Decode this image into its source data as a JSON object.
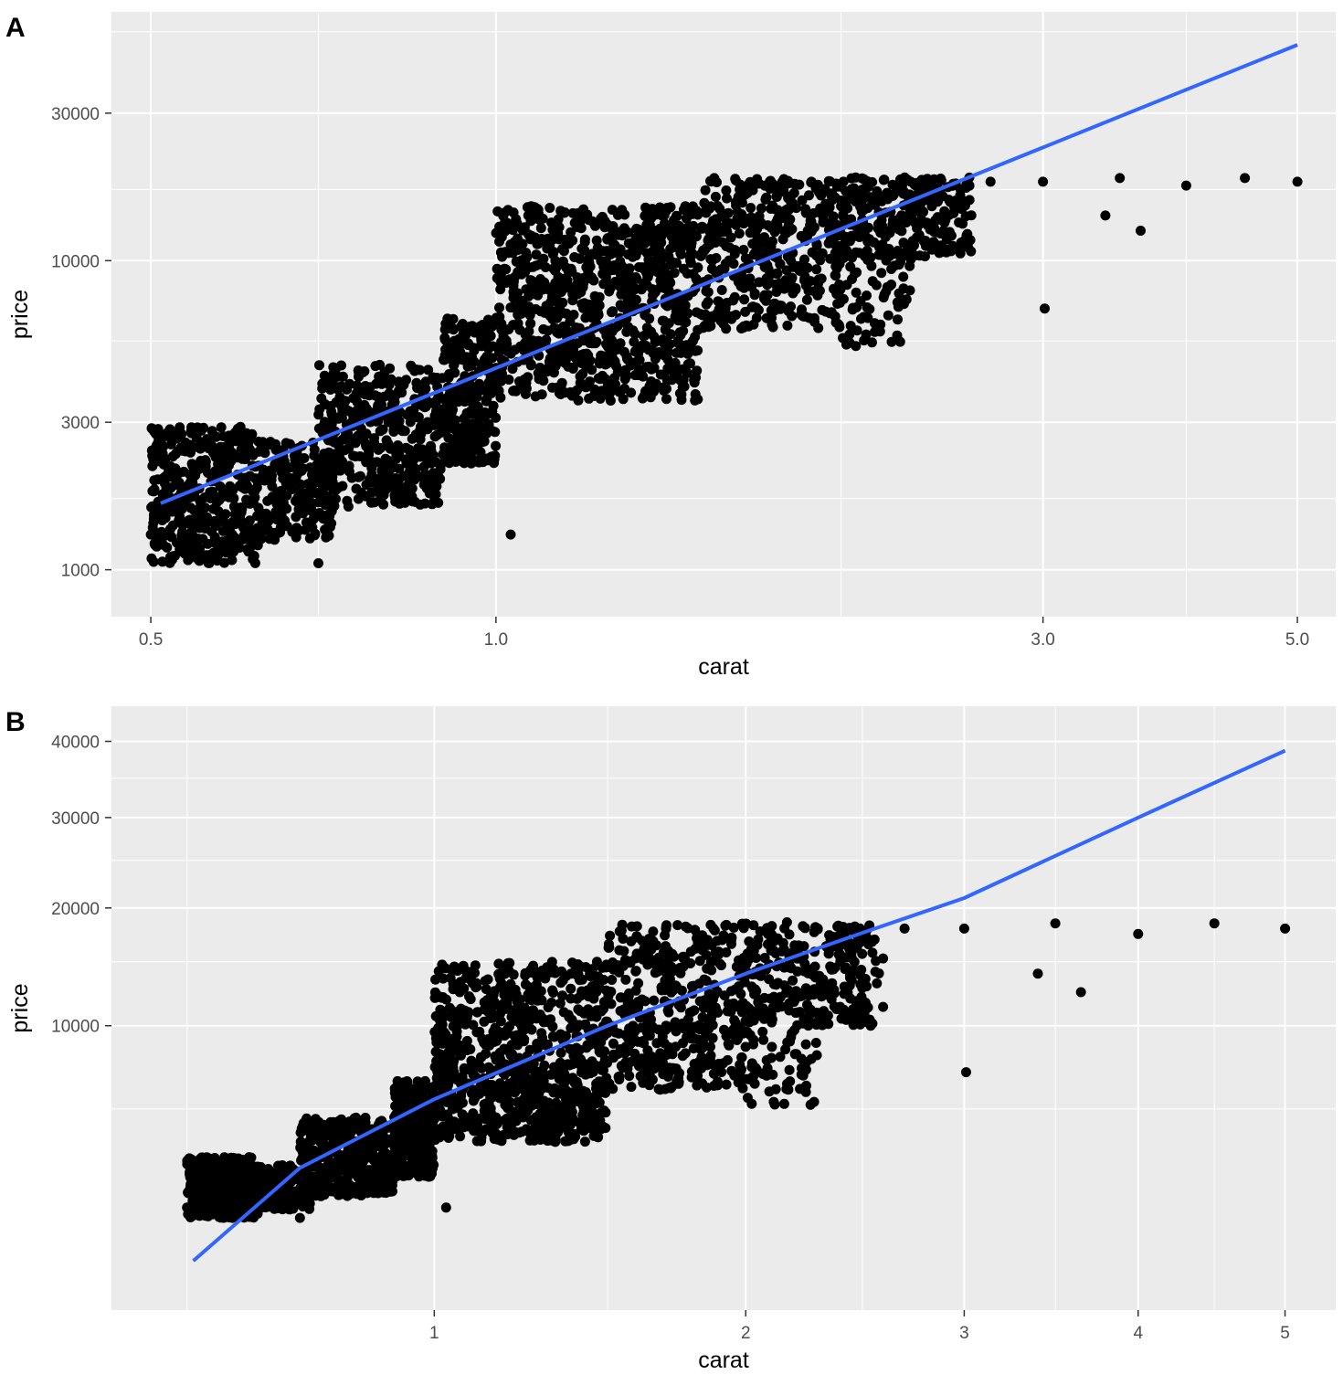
{
  "chart_data": [
    {
      "panel": "A",
      "type": "scatter",
      "title": "",
      "xlabel": "carat",
      "ylabel": "price",
      "x_scale": "log",
      "y_scale": "log",
      "xlim": [
        0.462,
        5.4
      ],
      "ylim": [
        705,
        63800
      ],
      "x_ticks": [
        0.5,
        1.0,
        3.0,
        5.0
      ],
      "x_tick_labels": [
        "0.5",
        "1.0",
        "3.0",
        "5.0"
      ],
      "x_minor_ticks": [
        0.7,
        2.0,
        4.0
      ],
      "y_ticks": [
        1000,
        3000,
        10000,
        30000
      ],
      "y_tick_labels": [
        "1000",
        "3000",
        "10000",
        "30000"
      ],
      "y_minor_ticks": [
        1700,
        5500,
        17000,
        55000
      ],
      "grid": true,
      "legend": "none",
      "fit_line": {
        "type": "linear",
        "color": "#3366ff",
        "x": [
          0.51,
          5.0
        ],
        "y": [
          1640,
          49900
        ]
      },
      "series": [
        {
          "values": [
            [
              0.52,
              1100
            ],
            [
              0.55,
              1250
            ],
            [
              0.6,
              1400
            ],
            [
              0.65,
              1500
            ],
            [
              0.5,
              1300
            ],
            [
              0.62,
              1200
            ],
            [
              0.7,
              1050
            ],
            [
              0.72,
              2000
            ],
            [
              0.78,
              2500
            ],
            [
              0.85,
              2300
            ],
            [
              0.8,
              3200
            ],
            [
              0.9,
              3000
            ],
            [
              0.92,
              5500
            ],
            [
              0.95,
              3600
            ],
            [
              1.0,
              4500
            ],
            [
              1.01,
              9000
            ],
            [
              1.05,
              7000
            ],
            [
              1.1,
              6000
            ],
            [
              1.2,
              5000
            ],
            [
              1.3,
              6500
            ],
            [
              1.4,
              8500
            ],
            [
              1.5,
              9500
            ],
            [
              1.6,
              11000
            ],
            [
              1.7,
              10000
            ],
            [
              1.8,
              13000
            ],
            [
              2.0,
              15000
            ],
            [
              2.05,
              17000
            ],
            [
              2.1,
              12000
            ],
            [
              2.2,
              16000
            ],
            [
              2.3,
              18000
            ],
            [
              2.4,
              15000
            ],
            [
              2.5,
              17500
            ],
            [
              2.7,
              18000
            ],
            [
              3.0,
              18000
            ],
            [
              3.01,
              7000
            ],
            [
              3.4,
              14000
            ],
            [
              3.5,
              18500
            ],
            [
              3.65,
              12500
            ],
            [
              4.0,
              17500
            ],
            [
              4.5,
              18500
            ],
            [
              5.0,
              18000
            ],
            [
              1.03,
              1300
            ]
          ]
        }
      ]
    },
    {
      "panel": "B",
      "type": "scatter",
      "title": "",
      "xlabel": "carat",
      "ylabel": "price",
      "x_scale": "cube-root",
      "y_scale": "sqrt",
      "xlim": [
        0.39,
        5.38
      ],
      "ylim": [
        0,
        45100
      ],
      "x_ticks": [
        1,
        2,
        3,
        4,
        5
      ],
      "x_tick_labels": [
        "1",
        "2",
        "3",
        "4",
        "5"
      ],
      "x_minor_ticks": [
        0.5,
        1.5,
        2.5,
        3.5,
        4.5
      ],
      "y_ticks": [
        10000,
        20000,
        30000,
        40000
      ],
      "y_tick_labels": [
        "10000",
        "20000",
        "30000",
        "40000"
      ],
      "y_minor_ticks": [
        5000,
        15000,
        25000,
        35000
      ],
      "grid": true,
      "legend": "none",
      "fit_line": {
        "type": "curve",
        "color": "#3366ff",
        "x": [
          0.51,
          0.7,
          1.0,
          1.5,
          2.0,
          2.5,
          3.0,
          4.0,
          5.0
        ],
        "y": [
          300,
          2500,
          5500,
          10000,
          14000,
          17600,
          21000,
          30000,
          38700
        ]
      },
      "series": [
        {
          "values": [
            [
              0.52,
              1100
            ],
            [
              0.55,
              1250
            ],
            [
              0.6,
              1400
            ],
            [
              0.65,
              1500
            ],
            [
              0.5,
              1300
            ],
            [
              0.62,
              1200
            ],
            [
              0.7,
              1050
            ],
            [
              0.72,
              2000
            ],
            [
              0.78,
              2500
            ],
            [
              0.85,
              2300
            ],
            [
              0.8,
              3200
            ],
            [
              0.9,
              3000
            ],
            [
              0.92,
              5500
            ],
            [
              0.95,
              3600
            ],
            [
              1.0,
              4500
            ],
            [
              1.01,
              9000
            ],
            [
              1.05,
              7000
            ],
            [
              1.1,
              6000
            ],
            [
              1.2,
              5000
            ],
            [
              1.3,
              6500
            ],
            [
              1.4,
              8500
            ],
            [
              1.5,
              9500
            ],
            [
              1.6,
              11000
            ],
            [
              1.7,
              10000
            ],
            [
              1.8,
              13000
            ],
            [
              2.0,
              15000
            ],
            [
              2.05,
              17000
            ],
            [
              2.1,
              12000
            ],
            [
              2.2,
              16000
            ],
            [
              2.3,
              18000
            ],
            [
              2.4,
              15000
            ],
            [
              2.5,
              17500
            ],
            [
              2.7,
              18000
            ],
            [
              3.0,
              18000
            ],
            [
              3.01,
              7000
            ],
            [
              3.4,
              14000
            ],
            [
              3.5,
              18500
            ],
            [
              3.65,
              12500
            ],
            [
              4.0,
              17500
            ],
            [
              4.5,
              18500
            ],
            [
              5.0,
              18000
            ],
            [
              1.03,
              1300
            ]
          ]
        }
      ]
    }
  ]
}
